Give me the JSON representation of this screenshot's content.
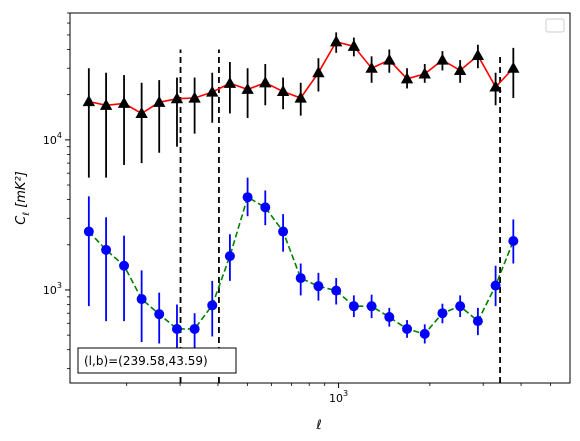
{
  "chart_data": {
    "type": "line",
    "title": "",
    "xlabel": "ℓ",
    "ylabel": "C_ℓ [mK²]",
    "x_scale": "log",
    "y_scale": "log",
    "xlim": [
      130,
      5800
    ],
    "ylim": [
      240,
      70000
    ],
    "x_ticks": [
      {
        "value": 1000,
        "base": "10",
        "exp": "3"
      }
    ],
    "y_ticks": [
      {
        "value": 1000,
        "base": "10",
        "exp": "3"
      },
      {
        "value": 10000,
        "base": "10",
        "exp": "4"
      }
    ],
    "grid": false,
    "legend": {
      "placement": "top-right",
      "entries": []
    },
    "vlines": [
      {
        "x": 301,
        "ymax": 40000
      },
      {
        "x": 403,
        "ymax": 40000
      },
      {
        "x": 3410,
        "ymax": 36000
      }
    ],
    "annotation": {
      "text": "(l, b)=(239.58,43.59)",
      "placement": "bottom-left"
    },
    "series": [
      {
        "color": "#ff0000",
        "marker_color": "#000000",
        "marker": "triangle",
        "linestyle": "solid",
        "points": [
          {
            "x": 150,
            "y": 18000,
            "lo": 5600,
            "hi": 30000
          },
          {
            "x": 171,
            "y": 17000,
            "lo": 5600,
            "hi": 28000
          },
          {
            "x": 196,
            "y": 17500,
            "lo": 6800,
            "hi": 27000
          },
          {
            "x": 224,
            "y": 15000,
            "lo": 7000,
            "hi": 24000
          },
          {
            "x": 256,
            "y": 17800,
            "lo": 8200,
            "hi": 25000
          },
          {
            "x": 293,
            "y": 18800,
            "lo": 9000,
            "hi": 26000
          },
          {
            "x": 335,
            "y": 19000,
            "lo": 11000,
            "hi": 26000
          },
          {
            "x": 383,
            "y": 20800,
            "lo": 13000,
            "hi": 28000
          },
          {
            "x": 438,
            "y": 23800,
            "lo": 15000,
            "hi": 33000
          },
          {
            "x": 501,
            "y": 21700,
            "lo": 14000,
            "hi": 30000
          },
          {
            "x": 573,
            "y": 24000,
            "lo": 17000,
            "hi": 32000
          },
          {
            "x": 656,
            "y": 21000,
            "lo": 16000,
            "hi": 26000
          },
          {
            "x": 750,
            "y": 19000,
            "lo": 14500,
            "hi": 24000
          },
          {
            "x": 858,
            "y": 28000,
            "lo": 21000,
            "hi": 35000
          },
          {
            "x": 982,
            "y": 45000,
            "lo": 38000,
            "hi": 52000
          },
          {
            "x": 1123,
            "y": 42000,
            "lo": 36000,
            "hi": 48000
          },
          {
            "x": 1285,
            "y": 30000,
            "lo": 24000,
            "hi": 36000
          },
          {
            "x": 1470,
            "y": 34000,
            "lo": 28000,
            "hi": 40000
          },
          {
            "x": 1682,
            "y": 25500,
            "lo": 22000,
            "hi": 30000
          },
          {
            "x": 1924,
            "y": 27500,
            "lo": 24000,
            "hi": 32000
          },
          {
            "x": 2201,
            "y": 34000,
            "lo": 29000,
            "hi": 39000
          },
          {
            "x": 2518,
            "y": 29000,
            "lo": 24000,
            "hi": 34000
          },
          {
            "x": 2881,
            "y": 36500,
            "lo": 30000,
            "hi": 43000
          },
          {
            "x": 3296,
            "y": 22500,
            "lo": 17000,
            "hi": 28000
          },
          {
            "x": 3771,
            "y": 30000,
            "lo": 19000,
            "hi": 41000
          }
        ]
      },
      {
        "color": "#008000",
        "marker_color": "#0000ff",
        "marker": "circle",
        "linestyle": "dashed",
        "points": [
          {
            "x": 150,
            "y": 2450,
            "lo": 780,
            "hi": 4200
          },
          {
            "x": 171,
            "y": 1850,
            "lo": 620,
            "hi": 3050
          },
          {
            "x": 196,
            "y": 1450,
            "lo": 620,
            "hi": 2300
          },
          {
            "x": 224,
            "y": 870,
            "lo": 450,
            "hi": 1350
          },
          {
            "x": 256,
            "y": 690,
            "lo": 440,
            "hi": 960
          },
          {
            "x": 293,
            "y": 550,
            "lo": 300,
            "hi": 800
          },
          {
            "x": 335,
            "y": 550,
            "lo": 400,
            "hi": 700
          },
          {
            "x": 383,
            "y": 790,
            "lo": 490,
            "hi": 1150
          },
          {
            "x": 438,
            "y": 1680,
            "lo": 1150,
            "hi": 2350
          },
          {
            "x": 501,
            "y": 4150,
            "lo": 3100,
            "hi": 5600
          },
          {
            "x": 573,
            "y": 3550,
            "lo": 2700,
            "hi": 4600
          },
          {
            "x": 656,
            "y": 2450,
            "lo": 1800,
            "hi": 3200
          },
          {
            "x": 750,
            "y": 1200,
            "lo": 920,
            "hi": 1500
          },
          {
            "x": 858,
            "y": 1060,
            "lo": 850,
            "hi": 1300
          },
          {
            "x": 982,
            "y": 990,
            "lo": 800,
            "hi": 1200
          },
          {
            "x": 1123,
            "y": 780,
            "lo": 660,
            "hi": 920
          },
          {
            "x": 1285,
            "y": 780,
            "lo": 650,
            "hi": 930
          },
          {
            "x": 1470,
            "y": 660,
            "lo": 570,
            "hi": 760
          },
          {
            "x": 1682,
            "y": 550,
            "lo": 480,
            "hi": 630
          },
          {
            "x": 1924,
            "y": 510,
            "lo": 440,
            "hi": 590
          },
          {
            "x": 2201,
            "y": 700,
            "lo": 600,
            "hi": 810
          },
          {
            "x": 2518,
            "y": 780,
            "lo": 660,
            "hi": 920
          },
          {
            "x": 2881,
            "y": 620,
            "lo": 500,
            "hi": 760
          },
          {
            "x": 3296,
            "y": 1070,
            "lo": 780,
            "hi": 1450
          },
          {
            "x": 3771,
            "y": 2120,
            "lo": 1500,
            "hi": 2950
          }
        ]
      }
    ]
  }
}
